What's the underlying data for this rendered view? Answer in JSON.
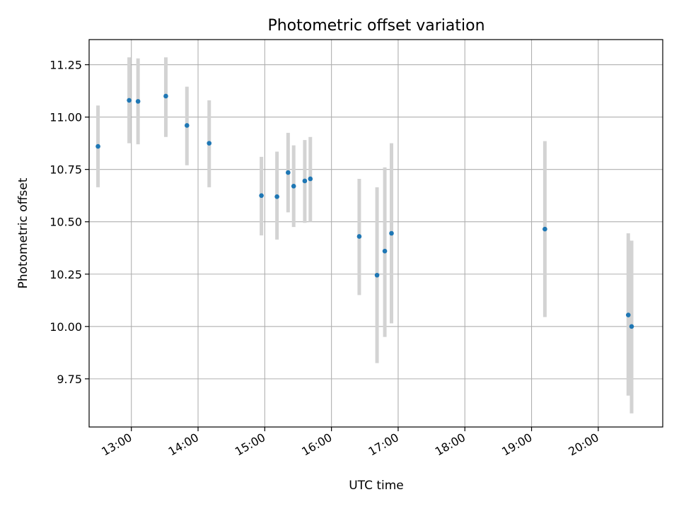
{
  "chart_data": {
    "type": "scatter",
    "title": "Photometric offset variation",
    "xlabel": "UTC time",
    "ylabel": "Photometric offset",
    "x_axis_kind": "time",
    "xlim": [
      "12:22",
      "20:58"
    ],
    "ylim": [
      9.52,
      11.37
    ],
    "grid": true,
    "x_ticks": [
      "13:00",
      "14:00",
      "15:00",
      "16:00",
      "17:00",
      "18:00",
      "19:00",
      "20:00"
    ],
    "y_ticks": [
      "9.75",
      "10.00",
      "10.25",
      "10.50",
      "10.75",
      "11.00",
      "11.25"
    ],
    "point_color": "#1f77b4",
    "errorbar_color": "#d3d3d3",
    "series": [
      {
        "points": [
          {
            "t": "12:30",
            "y": 10.86,
            "lo": 10.665,
            "hi": 11.055
          },
          {
            "t": "12:58",
            "y": 11.08,
            "lo": 10.875,
            "hi": 11.285
          },
          {
            "t": "13:06",
            "y": 11.075,
            "lo": 10.87,
            "hi": 11.28
          },
          {
            "t": "13:31",
            "y": 11.1,
            "lo": 10.905,
            "hi": 11.285
          },
          {
            "t": "13:50",
            "y": 10.96,
            "lo": 10.77,
            "hi": 11.145
          },
          {
            "t": "14:10",
            "y": 10.875,
            "lo": 10.665,
            "hi": 11.08
          },
          {
            "t": "14:57",
            "y": 10.625,
            "lo": 10.435,
            "hi": 10.81
          },
          {
            "t": "15:11",
            "y": 10.62,
            "lo": 10.415,
            "hi": 10.835
          },
          {
            "t": "15:21",
            "y": 10.735,
            "lo": 10.545,
            "hi": 10.925
          },
          {
            "t": "15:26",
            "y": 10.67,
            "lo": 10.475,
            "hi": 10.865
          },
          {
            "t": "15:36",
            "y": 10.695,
            "lo": 10.495,
            "hi": 10.89
          },
          {
            "t": "15:41",
            "y": 10.705,
            "lo": 10.5,
            "hi": 10.905
          },
          {
            "t": "16:25",
            "y": 10.43,
            "lo": 10.15,
            "hi": 10.705
          },
          {
            "t": "16:41",
            "y": 10.245,
            "lo": 9.825,
            "hi": 10.665
          },
          {
            "t": "16:48",
            "y": 10.36,
            "lo": 9.95,
            "hi": 10.76
          },
          {
            "t": "16:54",
            "y": 10.445,
            "lo": 10.015,
            "hi": 10.875
          },
          {
            "t": "19:12",
            "y": 10.465,
            "lo": 10.045,
            "hi": 10.885
          },
          {
            "t": "20:27",
            "y": 10.055,
            "lo": 9.67,
            "hi": 10.445
          },
          {
            "t": "20:30",
            "y": 10.0,
            "lo": 9.585,
            "hi": 10.41
          }
        ]
      }
    ]
  }
}
